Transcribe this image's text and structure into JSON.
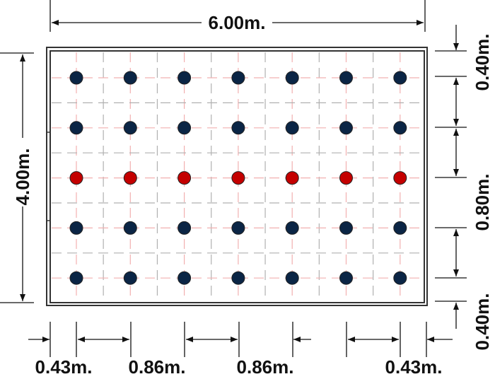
{
  "dimensions": {
    "width_label": "6.00m.",
    "height_label": "4.00m.",
    "right_labels": [
      "0.40m.",
      "0.80m.",
      "0.40m."
    ],
    "bottom_labels": [
      "0.43m.",
      "0.86m.",
      "0.86m.",
      "0.43m."
    ]
  },
  "grid": {
    "columns": 7,
    "rows": 5,
    "row_colors": [
      "#0b2545",
      "#0b2545",
      "#c40000",
      "#0b2545",
      "#0b2545"
    ]
  },
  "colors": {
    "dot_dark": "#0b2545",
    "dot_red": "#c40000",
    "red_guides": "#f2b0b0",
    "gray_guides": "#b0b0b0"
  }
}
